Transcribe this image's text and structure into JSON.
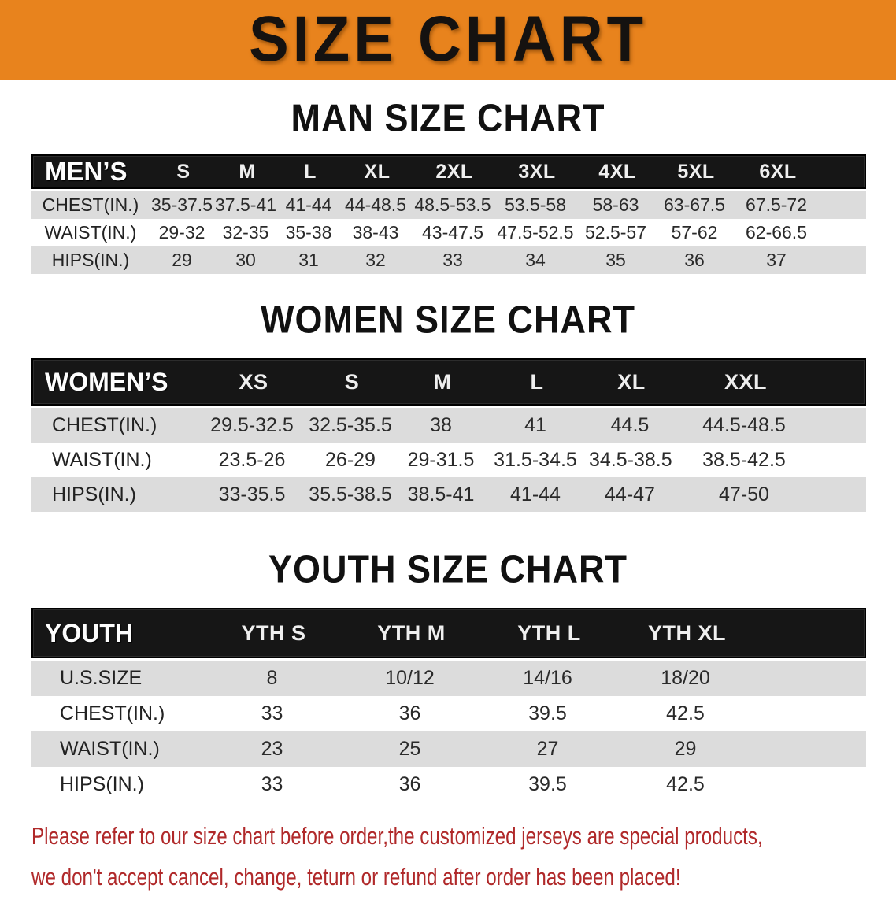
{
  "banner": {
    "title": "SIZE CHART",
    "bg_color": "#E8831D",
    "text_color": "#151210"
  },
  "sections": [
    {
      "id": "men",
      "heading": "MAN SIZE CHART",
      "table": {
        "label": "MEN’S",
        "sizes": [
          "S",
          "M",
          "L",
          "XL",
          "2XL",
          "3XL",
          "4XL",
          "5XL",
          "6XL"
        ],
        "rows": [
          {
            "label": "CHEST(IN.)",
            "values": [
              "35-37.5",
              "37.5-41",
              "41-44",
              "44-48.5",
              "48.5-53.5",
              "53.5-58",
              "58-63",
              "63-67.5",
              "67.5-72"
            ]
          },
          {
            "label": "WAIST(IN.)",
            "values": [
              "29-32",
              "32-35",
              "35-38",
              "38-43",
              "43-47.5",
              "47.5-52.5",
              "52.5-57",
              "57-62",
              "62-66.5"
            ]
          },
          {
            "label": "HIPS(IN.)",
            "values": [
              "29",
              "30",
              "31",
              "32",
              "33",
              "34",
              "35",
              "36",
              "37"
            ]
          }
        ]
      }
    },
    {
      "id": "women",
      "heading": "WOMEN SIZE CHART",
      "table": {
        "label": "WOMEN’S",
        "sizes": [
          "XS",
          "S",
          "M",
          "L",
          "XL",
          "XXL"
        ],
        "rows": [
          {
            "label": "CHEST(IN.)",
            "values": [
              "29.5-32.5",
              "32.5-35.5",
              "38",
              "41",
              "44.5",
              "44.5-48.5"
            ]
          },
          {
            "label": "WAIST(IN.)",
            "values": [
              "23.5-26",
              "26-29",
              "29-31.5",
              "31.5-34.5",
              "34.5-38.5",
              "38.5-42.5"
            ]
          },
          {
            "label": "HIPS(IN.)",
            "values": [
              "33-35.5",
              "35.5-38.5",
              "38.5-41",
              "41-44",
              "44-47",
              "47-50"
            ]
          }
        ]
      }
    },
    {
      "id": "youth",
      "heading": "YOUTH SIZE CHART",
      "table": {
        "label": "YOUTH",
        "sizes": [
          "YTH S",
          "YTH M",
          "YTH L",
          "YTH XL"
        ],
        "rows": [
          {
            "label": "U.S.SIZE",
            "values": [
              "8",
              "10/12",
              "14/16",
              "18/20"
            ]
          },
          {
            "label": "CHEST(IN.)",
            "values": [
              "33",
              "36",
              "39.5",
              "42.5"
            ]
          },
          {
            "label": "WAIST(IN.)",
            "values": [
              "23",
              "25",
              "27",
              "29"
            ]
          },
          {
            "label": "HIPS(IN.)",
            "values": [
              "33",
              "36",
              "39.5",
              "42.5"
            ]
          }
        ]
      }
    }
  ],
  "disclaimer": {
    "color": "#B0292A",
    "lines": [
      "Please refer to our size chart before order,the customized jerseys are special products,",
      "we don't accept cancel, change, teturn or refund after order has been placed!"
    ]
  }
}
